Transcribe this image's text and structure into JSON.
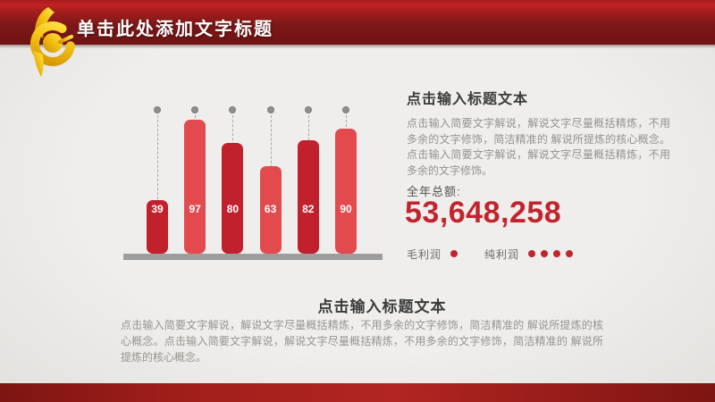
{
  "header": {
    "title": "单击此处添加文字标题",
    "logo_icon": "gold-swirl-logo"
  },
  "right_panel": {
    "title": "点击输入标题文本",
    "body": "点击输入简要文字解说，解说文字尽量概括精炼，不用多余的文字修饰，简洁精准的 解说所提炼的核心概念。点击输入简要文字解说，解说文字尽量概括精炼，不用多余的文字修饰。",
    "total_label": "全年总额:",
    "total_value": "53,648,258",
    "legend": [
      {
        "label": "毛利润",
        "dots": 1
      },
      {
        "label": "纯利润",
        "dots": 4
      }
    ]
  },
  "bottom_section": {
    "title": "点击输入标题文本",
    "body": "点击输入简要文字解说，解说文字尽量概括精炼，不用多余的文字修饰，简洁精准的 解说所提炼的核心概念。点击输入简要文字解说，解说文字尽量概括精炼，不用多余的文字修饰，简洁精准的 解说所提炼的核心概念。"
  },
  "chart_data": {
    "type": "bar",
    "categories": [
      "",
      "",
      "",
      "",
      "",
      ""
    ],
    "values": [
      39,
      97,
      80,
      63,
      82,
      90
    ],
    "data_labels": [
      "39",
      "97",
      "80",
      "63",
      "82",
      "90"
    ],
    "title": "",
    "xlabel": "",
    "ylabel": "",
    "ylim": [
      0,
      100
    ],
    "grid": false,
    "legend_position": "none",
    "bar_colors": [
      "#c1212c",
      "#e24a4e",
      "#c1212c",
      "#e24a4e",
      "#c1212c",
      "#e24a4e"
    ],
    "marker_dots_above_bars": true,
    "dashed_guides": true
  },
  "colors": {
    "header_red_bright": "#c32121",
    "header_maroon": "#7e1717",
    "footer_red": "#b22522",
    "accent_red": "#c2242e",
    "bar_dark_red": "#c1212c",
    "bar_light_red": "#e24a4e",
    "baseline_gray": "#9d9d9d",
    "dot_gray": "#8e8e8e",
    "title_text": "#3b3b3b",
    "body_text": "#95918e",
    "background": "#ececea",
    "logo_gold": "#f2c114"
  }
}
